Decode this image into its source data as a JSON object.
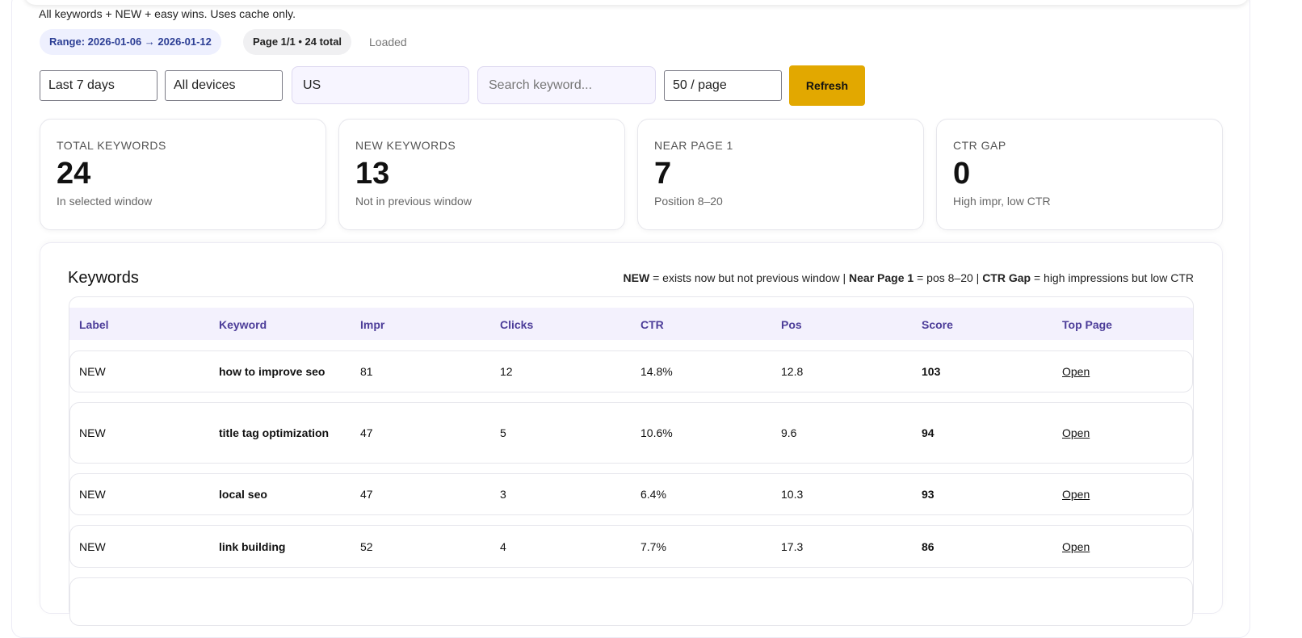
{
  "subtitle": "All keywords + NEW + easy wins. Uses cache only.",
  "chips": {
    "range": "Range: 2026-01-06 → 2026-01-12",
    "page": "Page 1/1 • 24 total",
    "status": "Loaded"
  },
  "filters": {
    "range": "Last 7 days",
    "device": "All devices",
    "country": "US",
    "search_placeholder": "Search keyword...",
    "per_page": "50 / page",
    "refresh": "Refresh"
  },
  "stats": [
    {
      "title": "TOTAL KEYWORDS",
      "value": "24",
      "sub": "In selected window"
    },
    {
      "title": "NEW KEYWORDS",
      "value": "13",
      "sub": "Not in previous window"
    },
    {
      "title": "NEAR PAGE 1",
      "value": "7",
      "sub": "Position 8–20"
    },
    {
      "title": "CTR GAP",
      "value": "0",
      "sub": "High impr, low CTR"
    }
  ],
  "keywords": {
    "title": "Keywords",
    "legend": [
      {
        "k": "NEW",
        "d": " = exists now but not previous window | "
      },
      {
        "k": "Near Page 1",
        "d": " = pos 8–20 | "
      },
      {
        "k": "CTR Gap",
        "d": " = high impressions but low CTR"
      }
    ],
    "columns": [
      "Label",
      "Keyword",
      "Impr",
      "Clicks",
      "CTR",
      "Pos",
      "Score",
      "Top Page"
    ],
    "rows": [
      {
        "label": "NEW",
        "keyword": "how to improve seo",
        "impr": "81",
        "clicks": "12",
        "ctr": "14.8%",
        "pos": "12.8",
        "score": "103",
        "link": "Open"
      },
      {
        "label": "NEW",
        "keyword": "title tag optimization",
        "impr": "47",
        "clicks": "5",
        "ctr": "10.6%",
        "pos": "9.6",
        "score": "94",
        "link": "Open"
      },
      {
        "label": "NEW",
        "keyword": "local seo",
        "impr": "47",
        "clicks": "3",
        "ctr": "6.4%",
        "pos": "10.3",
        "score": "93",
        "link": "Open"
      },
      {
        "label": "NEW",
        "keyword": "link building",
        "impr": "52",
        "clicks": "4",
        "ctr": "7.7%",
        "pos": "17.3",
        "score": "86",
        "link": "Open"
      }
    ]
  }
}
